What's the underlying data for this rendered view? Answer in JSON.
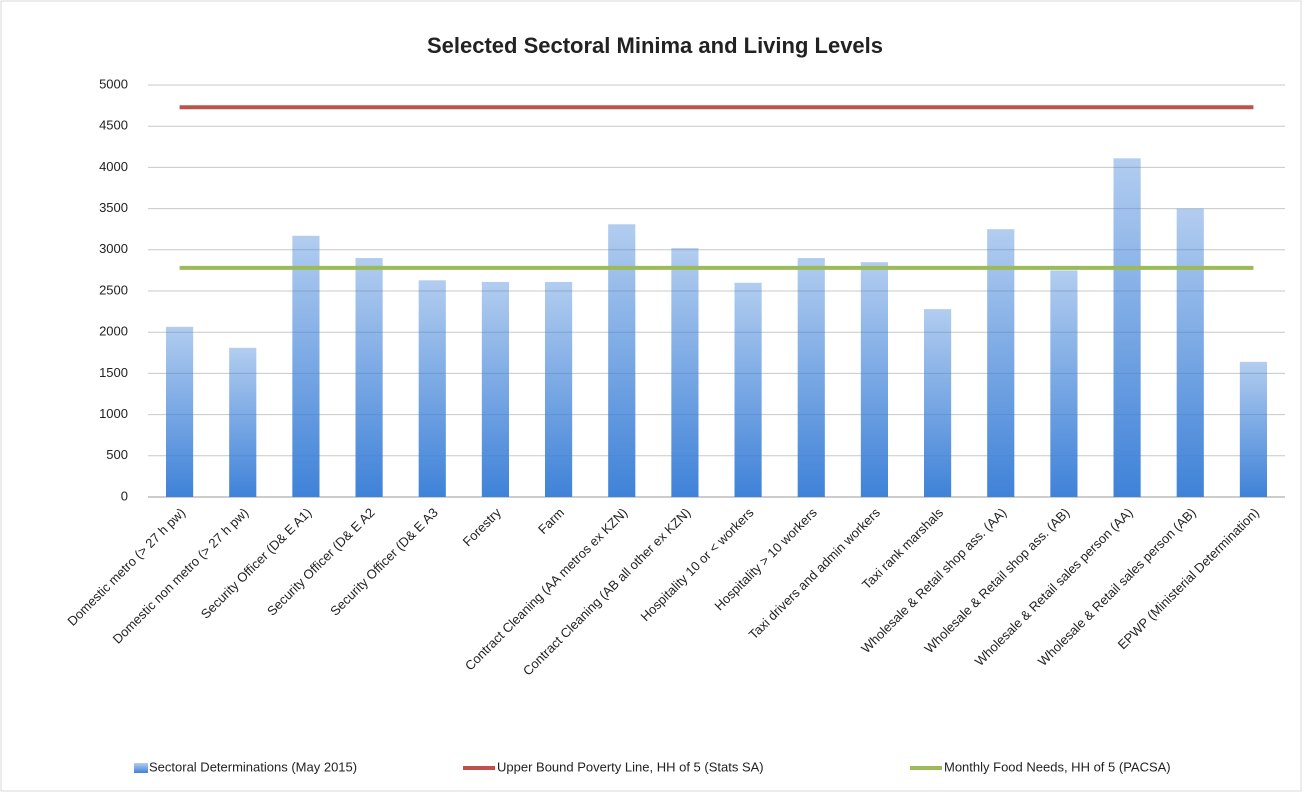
{
  "chart_data": {
    "type": "bar",
    "title": "Selected Sectoral Minima and Living Levels",
    "categories": [
      "Domestic metro (> 27 h pw)",
      "Domestic non metro (> 27 h pw)",
      "Security Officer (D& E A1)",
      "Security Officer (D& E A2",
      "Security Officer (D& E A3",
      "Forestry",
      "Farm",
      "Contract Cleaning (AA metros ex KZN)",
      "Contract Cleaning (AB all other ex KZN)",
      "Hospitality 10 or < workers",
      "Hospitality > 10 workers",
      "Taxi drivers and admin workers",
      "Taxi rank marshals",
      "Wholesale & Retail shop ass. (AA)",
      "Wholesale & Retail shop ass. (AB)",
      "Wholesale & Retail sales person (AA)",
      "Wholesale & Retail sales person (AB)",
      "EPWP (Ministerial Determination)"
    ],
    "series": [
      {
        "name": "Sectoral Determinations (May 2015)",
        "type": "bar",
        "color": "#3f82d8",
        "values": [
          2065,
          1810,
          3170,
          2900,
          2630,
          2610,
          2610,
          3310,
          3020,
          2600,
          2900,
          2850,
          2280,
          3250,
          2750,
          4110,
          3500,
          1640
        ]
      },
      {
        "name": "Upper Bound Poverty Line, HH of 5 (Stats SA)",
        "type": "line",
        "color": "#c0504d",
        "values": [
          4730,
          4730,
          4730,
          4730,
          4730,
          4730,
          4730,
          4730,
          4730,
          4730,
          4730,
          4730,
          4730,
          4730,
          4730,
          4730,
          4730,
          4730
        ]
      },
      {
        "name": "Monthly Food Needs, HH of 5 (PACSA)",
        "type": "line",
        "color": "#9bbb59",
        "values": [
          2780,
          2780,
          2780,
          2780,
          2780,
          2780,
          2780,
          2780,
          2780,
          2780,
          2780,
          2780,
          2780,
          2780,
          2780,
          2780,
          2780,
          2780
        ]
      }
    ],
    "ylim": [
      0,
      5000
    ],
    "yticks": [
      0,
      500,
      1000,
      1500,
      2000,
      2500,
      3000,
      3500,
      4000,
      4500,
      5000
    ],
    "grid": true,
    "legend": "bottom"
  }
}
